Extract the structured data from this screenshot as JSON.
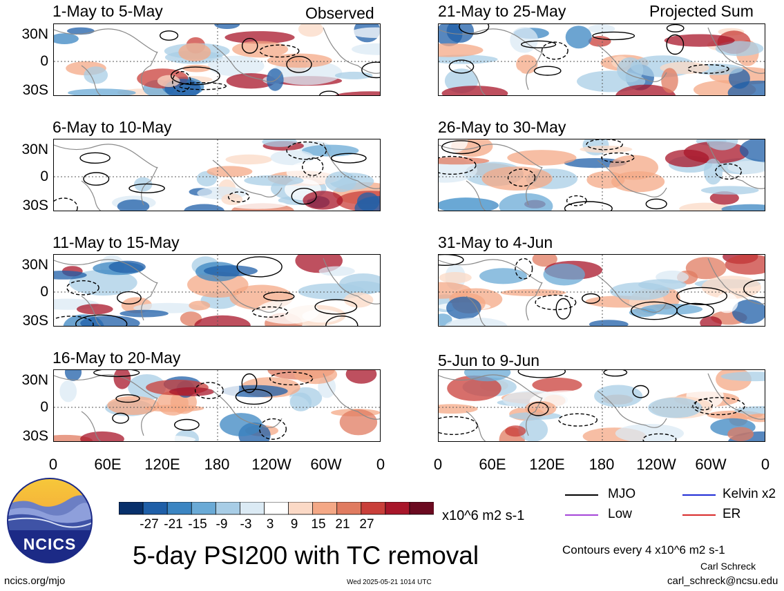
{
  "headers": {
    "observed": "Observed",
    "projected": "Projected Sum"
  },
  "panels": [
    {
      "title": "1-May to 5-May"
    },
    {
      "title": "6-May to 10-May"
    },
    {
      "title": "11-May to 15-May"
    },
    {
      "title": "16-May to 20-May"
    },
    {
      "title": "21-May to 25-May"
    },
    {
      "title": "26-May to 30-May"
    },
    {
      "title": "31-May to 4-Jun"
    },
    {
      "title": "5-Jun to 9-Jun"
    }
  ],
  "lat_labels": [
    "30N",
    "0",
    "30S"
  ],
  "lon_labels": [
    "0",
    "60E",
    "120E",
    "180",
    "120W",
    "60W",
    "0"
  ],
  "colorbar": {
    "labels": [
      "-27",
      "-21",
      "-15",
      "-9",
      "-3",
      "3",
      "9",
      "15",
      "21",
      "27"
    ],
    "units": "x10^6 m2 s-1",
    "colors": [
      "#08306b",
      "#1f5fa8",
      "#3b85c2",
      "#6aaad6",
      "#a8cde6",
      "#dbeaf4",
      "#ffffff",
      "#fbd9c6",
      "#f4a886",
      "#e07b60",
      "#c93f3a",
      "#a8162a",
      "#6b0a20"
    ]
  },
  "legend": {
    "items": [
      {
        "label": "MJO",
        "color": "#000000"
      },
      {
        "label": "Kelvin x2",
        "color": "#1e2bd6"
      },
      {
        "label": "Low",
        "color": "#a444d8"
      },
      {
        "label": "ER",
        "color": "#d82a2a"
      }
    ],
    "contour_note": "Contours every 4 x10^6 m2 s-1"
  },
  "logo": {
    "text": "NCICS"
  },
  "main_title": "5-day PSI200 with TC removal",
  "footer": {
    "url": "ncics.org/mjo",
    "timestamp": "Wed 2025-05-21 1014 UTC",
    "author": "Carl Schreck",
    "email": "carl_schreck@ncsu.edu"
  }
}
